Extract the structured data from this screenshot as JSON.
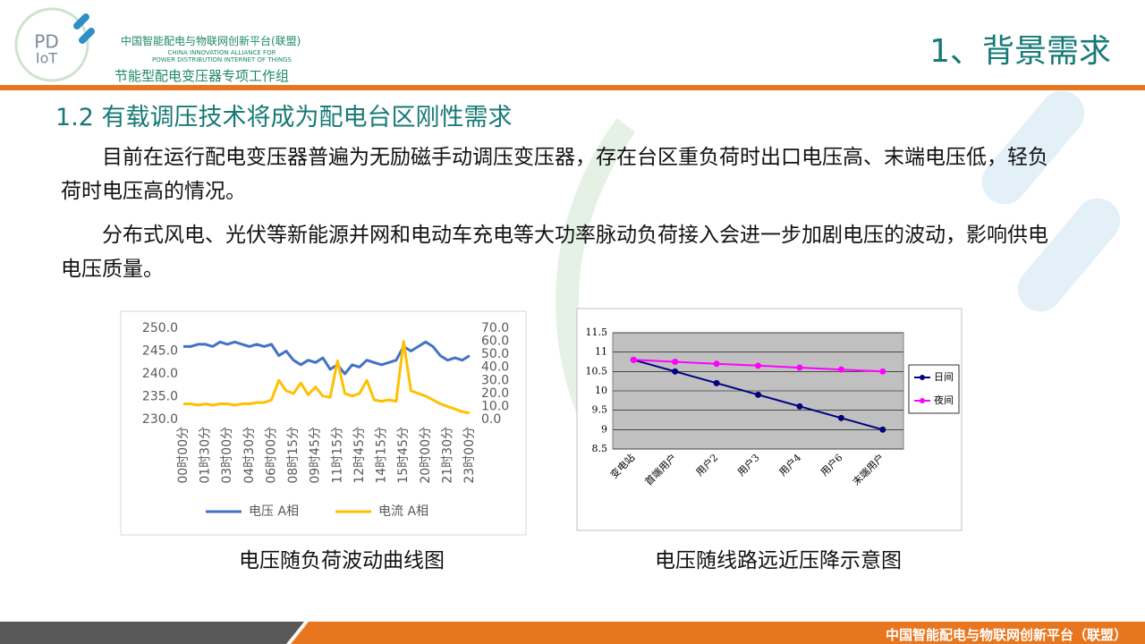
{
  "logo": {
    "top": "PD",
    "bottom": "IoT"
  },
  "header": {
    "org_cn": "中国智能配电与物联网创新平台(联盟)",
    "org_en": [
      "CHINA INNOVATION ALLIANCE FOR",
      "POWER DISTRIBUTION INTERNET OF THINGS"
    ],
    "group": "节能型配电变压器专项工作组",
    "title": "1、背景需求"
  },
  "section_title": "1.2 有载调压技术将成为配电台区刚性需求",
  "paragraphs": [
    "目前在运行配电变压器普遍为无励磁手动调压变压器，存在台区重负荷时出口电压高、末端电压低，轻负荷时电压高的情况。",
    "分布式风电、光伏等新能源并网和电动车充电等大功率脉动负荷接入会进一步加剧电压的波动，影响供电电压质量。"
  ],
  "chart_data": [
    {
      "type": "line",
      "caption": "电压随负荷波动曲线图",
      "categories": [
        "00时00分",
        null,
        null,
        "01时30分",
        null,
        null,
        "03时00分",
        null,
        null,
        "04时30分",
        null,
        null,
        "06时00分",
        null,
        null,
        "08时15分",
        null,
        null,
        "09时45分",
        null,
        null,
        "11时15分",
        null,
        null,
        "12时45分",
        null,
        null,
        "14时15分",
        null,
        null,
        "15时45分",
        null,
        null,
        "20时00分",
        null,
        null,
        "21时30分",
        null,
        null,
        "23时00分"
      ],
      "series": [
        {
          "name": "电压 A相",
          "color": "#4472c4",
          "values": [
            246,
            246,
            246.5,
            246.5,
            246,
            247,
            246.5,
            247,
            246.5,
            246,
            246.5,
            246,
            246.5,
            244,
            245,
            243,
            242,
            243,
            242.5,
            243.5,
            241,
            242,
            240,
            242,
            241.5,
            243,
            242.5,
            242,
            242.5,
            243,
            246,
            245,
            246,
            247,
            246,
            244,
            243,
            243.5,
            243,
            244
          ]
        },
        {
          "name": "电流 A相",
          "color": "#ffc000",
          "axis": "y2",
          "values": [
            12,
            12,
            11,
            12,
            11,
            12,
            12,
            11,
            12,
            12,
            13,
            13,
            15,
            30,
            22,
            20,
            28,
            19,
            25,
            18,
            17,
            45,
            20,
            18,
            20,
            30,
            15,
            14,
            15,
            14,
            60,
            22,
            20,
            18,
            15,
            12,
            10,
            8,
            6,
            5
          ]
        }
      ],
      "ylim": [
        230,
        250
      ],
      "yticks": [
        {
          "value": 230,
          "label": "230.0"
        },
        {
          "value": 235,
          "label": "235.0"
        },
        {
          "value": 240,
          "label": "240.0"
        },
        {
          "value": 245,
          "label": "245.0"
        },
        {
          "value": 250,
          "label": "250.0"
        }
      ],
      "y2lim": [
        0,
        70
      ],
      "y2ticks": [
        {
          "value": 0,
          "label": "0.0"
        },
        {
          "value": 10,
          "label": "10.0"
        },
        {
          "value": 20,
          "label": "20.0"
        },
        {
          "value": 30,
          "label": "30.0"
        },
        {
          "value": 40,
          "label": "40.0"
        },
        {
          "value": 50,
          "label": "50.0"
        },
        {
          "value": 60,
          "label": "60.0"
        },
        {
          "value": 70,
          "label": "70.0"
        }
      ],
      "grid": false,
      "markers": false,
      "legend": "bottom"
    },
    {
      "type": "line",
      "caption": "电压随线路远近压降示意图",
      "categories": [
        "变电站",
        "首端用户",
        "用户2",
        "用户3",
        "用户4",
        "用户6",
        "末端用户"
      ],
      "series": [
        {
          "name": "日间",
          "color": "#000080",
          "values": [
            10.8,
            10.5,
            10.2,
            9.9,
            9.6,
            9.3,
            9.0
          ]
        },
        {
          "name": "夜间",
          "color": "#ff00ff",
          "values": [
            10.8,
            10.75,
            10.7,
            10.65,
            10.6,
            10.55,
            10.5
          ]
        }
      ],
      "ylim": [
        8.5,
        11.5
      ],
      "yticks": [
        8.5,
        9,
        9.5,
        10,
        10.5,
        11,
        11.5
      ],
      "grid": true,
      "markers": true,
      "legend": "right"
    }
  ],
  "footer": "中国智能配电与物联网创新平台（联盟）"
}
